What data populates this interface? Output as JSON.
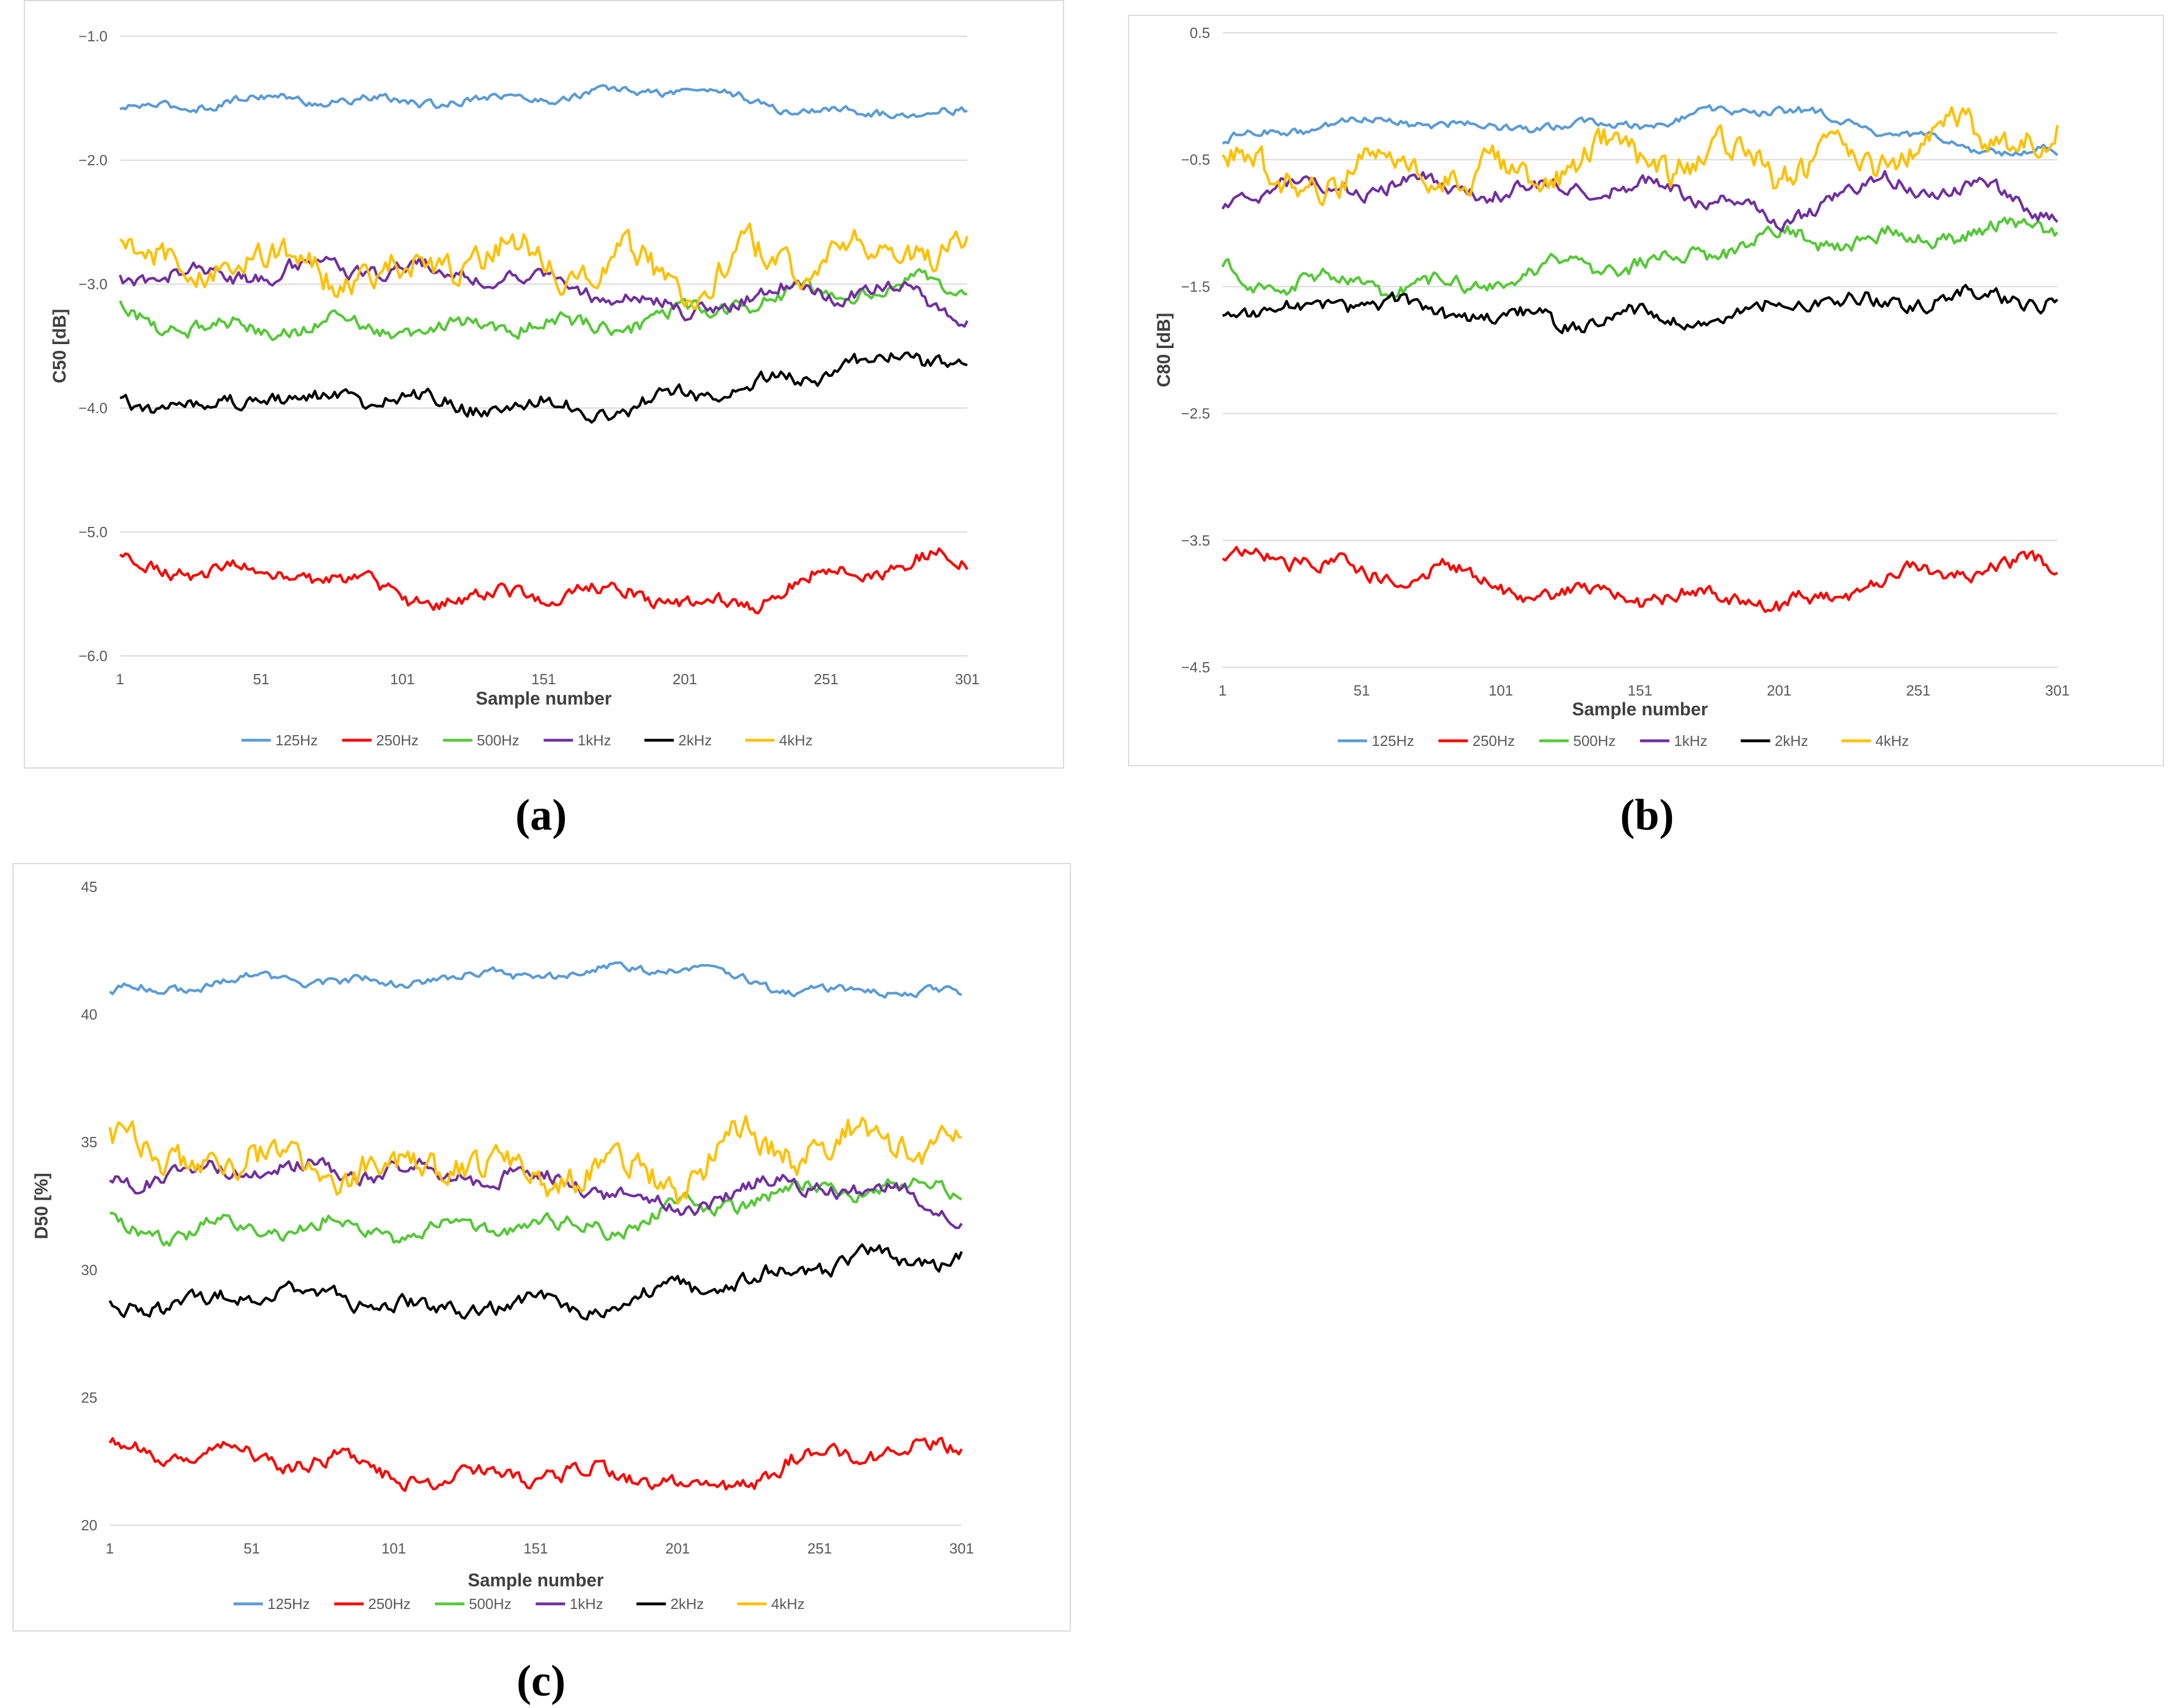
{
  "figure": {
    "captions": [
      "(a)",
      "(b)",
      "(c)"
    ]
  },
  "legend": {
    "labels": [
      "125Hz",
      "250Hz",
      "500Hz",
      "1kHz",
      "2kHz",
      "4kHz"
    ],
    "colors": [
      "#5b9bd5",
      "#ff0000",
      "#55c837",
      "#7030a0",
      "#000000",
      "#ffc000"
    ]
  },
  "chart_data": [
    {
      "type": "line",
      "id": "a",
      "title": "",
      "xlabel": "Sample number",
      "ylabel": "C50  [dB]",
      "xlim": [
        1,
        301
      ],
      "ylim": [
        -6.0,
        -1.0
      ],
      "xticks": [
        "1",
        "51",
        "101",
        "151",
        "201",
        "251",
        "301"
      ],
      "yticks": [
        "−1.0",
        "−2.0",
        "−3.0",
        "−4.0",
        "−5.0",
        "−6.0"
      ],
      "grid": true,
      "legend_position": "bottom",
      "series": [
        {
          "name": "125Hz",
          "x": [
            1,
            21,
            41,
            61,
            81,
            101,
            121,
            141,
            161,
            181,
            201,
            221,
            241,
            261,
            281,
            301
          ],
          "values": [
            -1.6,
            -1.57,
            -1.52,
            -1.5,
            -1.52,
            -1.53,
            -1.52,
            -1.5,
            -1.48,
            -1.45,
            -1.42,
            -1.5,
            -1.6,
            -1.62,
            -1.6,
            -1.63
          ]
        },
        {
          "name": "250Hz",
          "x": [
            1,
            21,
            41,
            61,
            81,
            101,
            121,
            141,
            161,
            181,
            201,
            221,
            241,
            261,
            281,
            301
          ],
          "values": [
            -5.25,
            -5.28,
            -5.32,
            -5.35,
            -5.4,
            -5.5,
            -5.6,
            -5.45,
            -5.55,
            -5.45,
            -5.6,
            -5.6,
            -5.4,
            -5.3,
            -5.25,
            -5.22
          ]
        },
        {
          "name": "500Hz",
          "x": [
            1,
            21,
            41,
            61,
            81,
            101,
            121,
            141,
            161,
            181,
            201,
            221,
            241,
            261,
            281,
            301
          ],
          "values": [
            -3.2,
            -3.35,
            -3.35,
            -3.35,
            -3.3,
            -3.4,
            -3.35,
            -3.3,
            -3.35,
            -3.3,
            -3.25,
            -3.15,
            -3.1,
            -3.05,
            -3.02,
            -3.0
          ]
        },
        {
          "name": "1kHz",
          "x": [
            1,
            21,
            41,
            61,
            81,
            101,
            121,
            141,
            161,
            181,
            201,
            221,
            241,
            261,
            281,
            301
          ],
          "values": [
            -2.95,
            -2.9,
            -2.95,
            -2.85,
            -2.9,
            -2.85,
            -2.95,
            -2.9,
            -3.05,
            -3.1,
            -3.25,
            -3.1,
            -3.05,
            -3.05,
            -3.1,
            -3.25
          ]
        },
        {
          "name": "2kHz",
          "x": [
            1,
            21,
            41,
            61,
            81,
            101,
            121,
            141,
            161,
            181,
            201,
            221,
            241,
            261,
            281,
            301
          ],
          "values": [
            -3.9,
            -4.05,
            -3.9,
            -3.95,
            -3.9,
            -3.95,
            -3.95,
            -4.0,
            -3.95,
            -4.05,
            -3.85,
            -3.85,
            -3.75,
            -3.65,
            -3.6,
            -3.6
          ]
        },
        {
          "name": "4kHz",
          "x": [
            1,
            21,
            41,
            61,
            81,
            101,
            121,
            141,
            161,
            181,
            201,
            221,
            241,
            261,
            281,
            301
          ],
          "values": [
            -2.6,
            -3.0,
            -2.7,
            -2.85,
            -2.9,
            -2.95,
            -2.8,
            -2.75,
            -2.85,
            -2.8,
            -3.05,
            -2.8,
            -2.78,
            -2.75,
            -2.7,
            -2.65
          ]
        }
      ]
    },
    {
      "type": "line",
      "id": "b",
      "title": "",
      "xlabel": "Sample number",
      "ylabel": "C80  [dB]",
      "xlim": [
        1,
        301
      ],
      "ylim": [
        -4.5,
        0.5
      ],
      "xticks": [
        "1",
        "51",
        "101",
        "151",
        "201",
        "251",
        "301"
      ],
      "yticks": [
        "0.5",
        "−0.5",
        "−1.5",
        "−2.5",
        "−3.5",
        "−4.5"
      ],
      "grid": true,
      "legend_position": "bottom",
      "series": [
        {
          "name": "125Hz",
          "x": [
            1,
            21,
            41,
            61,
            81,
            101,
            121,
            141,
            161,
            181,
            201,
            221,
            241,
            261,
            281,
            301
          ],
          "values": [
            -0.35,
            -0.28,
            -0.22,
            -0.18,
            -0.22,
            -0.25,
            -0.23,
            -0.22,
            -0.2,
            -0.12,
            -0.1,
            -0.18,
            -0.3,
            -0.38,
            -0.42,
            -0.45
          ]
        },
        {
          "name": "250Hz",
          "x": [
            1,
            21,
            41,
            61,
            81,
            101,
            121,
            141,
            161,
            181,
            201,
            221,
            241,
            261,
            281,
            301
          ],
          "values": [
            -3.65,
            -3.6,
            -3.72,
            -3.78,
            -3.75,
            -3.85,
            -3.95,
            -3.9,
            -4.0,
            -3.9,
            -4.05,
            -3.95,
            -3.8,
            -3.75,
            -3.7,
            -3.7
          ]
        },
        {
          "name": "500Hz",
          "x": [
            1,
            21,
            41,
            61,
            81,
            101,
            121,
            141,
            161,
            181,
            201,
            221,
            241,
            261,
            281,
            301
          ],
          "values": [
            -1.35,
            -1.5,
            -1.45,
            -1.5,
            -1.5,
            -1.45,
            -1.35,
            -1.35,
            -1.3,
            -1.2,
            -1.1,
            -1.15,
            -1.12,
            -1.08,
            -1.05,
            -1.05
          ]
        },
        {
          "name": "1kHz",
          "x": [
            1,
            21,
            41,
            61,
            81,
            101,
            121,
            141,
            161,
            181,
            201,
            221,
            241,
            261,
            281,
            301
          ],
          "values": [
            -0.85,
            -0.7,
            -0.72,
            -0.7,
            -0.7,
            -0.75,
            -0.72,
            -0.72,
            -0.75,
            -0.8,
            -1.05,
            -0.75,
            -0.68,
            -0.7,
            -0.8,
            -0.9
          ]
        },
        {
          "name": "2kHz",
          "x": [
            1,
            21,
            41,
            61,
            81,
            101,
            121,
            141,
            161,
            181,
            201,
            221,
            241,
            261,
            281,
            301
          ],
          "values": [
            -1.65,
            -1.75,
            -1.6,
            -1.65,
            -1.7,
            -1.75,
            -1.75,
            -1.75,
            -1.7,
            -1.8,
            -1.6,
            -1.65,
            -1.62,
            -1.58,
            -1.58,
            -1.6
          ]
        },
        {
          "name": "4kHz",
          "x": [
            1,
            21,
            41,
            61,
            81,
            101,
            121,
            141,
            161,
            181,
            201,
            221,
            241,
            261,
            281,
            301
          ],
          "values": [
            -0.3,
            -0.8,
            -0.6,
            -0.5,
            -0.6,
            -0.65,
            -0.55,
            -0.45,
            -0.5,
            -0.45,
            -0.55,
            -0.55,
            -0.45,
            -0.35,
            -0.3,
            -0.35
          ]
        }
      ]
    },
    {
      "type": "line",
      "id": "c",
      "title": "",
      "xlabel": "Sample number",
      "ylabel": "D50 [%]",
      "xlim": [
        1,
        301
      ],
      "ylim": [
        20,
        45
      ],
      "xticks": [
        "1",
        "51",
        "101",
        "151",
        "201",
        "251",
        "301"
      ],
      "yticks": [
        "45",
        "40",
        "35",
        "30",
        "25",
        "20"
      ],
      "grid": false,
      "legend_position": "bottom",
      "series": [
        {
          "name": "125Hz",
          "x": [
            1,
            21,
            41,
            61,
            81,
            101,
            121,
            141,
            161,
            181,
            201,
            221,
            241,
            261,
            281,
            301
          ],
          "values": [
            40.9,
            41.0,
            41.3,
            41.4,
            41.3,
            41.2,
            41.5,
            41.5,
            41.6,
            41.8,
            41.9,
            41.5,
            40.9,
            40.9,
            41.0,
            40.7
          ]
        },
        {
          "name": "250Hz",
          "x": [
            1,
            21,
            41,
            61,
            81,
            101,
            121,
            141,
            161,
            181,
            201,
            221,
            241,
            261,
            281,
            301
          ],
          "values": [
            23.0,
            22.8,
            22.8,
            22.6,
            22.5,
            22.0,
            21.6,
            22.2,
            21.8,
            22.2,
            21.5,
            21.6,
            22.5,
            22.8,
            23.0,
            23.0
          ]
        },
        {
          "name": "500Hz",
          "x": [
            1,
            21,
            41,
            61,
            81,
            101,
            121,
            141,
            161,
            181,
            201,
            221,
            241,
            261,
            281,
            301
          ],
          "values": [
            32.0,
            31.3,
            31.6,
            31.5,
            31.8,
            31.4,
            31.7,
            31.8,
            31.6,
            31.8,
            32.4,
            32.6,
            33.0,
            33.2,
            33.3,
            33.3
          ]
        },
        {
          "name": "1kHz",
          "x": [
            1,
            21,
            41,
            61,
            81,
            101,
            121,
            141,
            161,
            181,
            201,
            221,
            241,
            261,
            281,
            301
          ],
          "values": [
            33.5,
            33.7,
            34.0,
            34.0,
            33.8,
            34.0,
            33.6,
            33.8,
            33.3,
            33.0,
            32.2,
            33.3,
            33.3,
            33.3,
            33.0,
            32.2
          ]
        },
        {
          "name": "2kHz",
          "x": [
            1,
            21,
            41,
            61,
            81,
            101,
            121,
            141,
            161,
            181,
            201,
            221,
            241,
            261,
            281,
            301
          ],
          "values": [
            29.0,
            28.2,
            29.2,
            29.0,
            29.2,
            28.4,
            28.6,
            28.5,
            28.7,
            28.3,
            29.6,
            29.3,
            30.0,
            30.3,
            30.4,
            30.5
          ]
        },
        {
          "name": "4kHz",
          "x": [
            1,
            21,
            41,
            61,
            81,
            101,
            121,
            141,
            161,
            181,
            201,
            221,
            241,
            261,
            281,
            301
          ],
          "values": [
            36.0,
            33.6,
            34.8,
            33.8,
            34.0,
            33.8,
            34.5,
            33.5,
            33.9,
            33.8,
            33.5,
            34.9,
            34.8,
            35.0,
            35.1,
            35.0
          ]
        }
      ]
    }
  ]
}
